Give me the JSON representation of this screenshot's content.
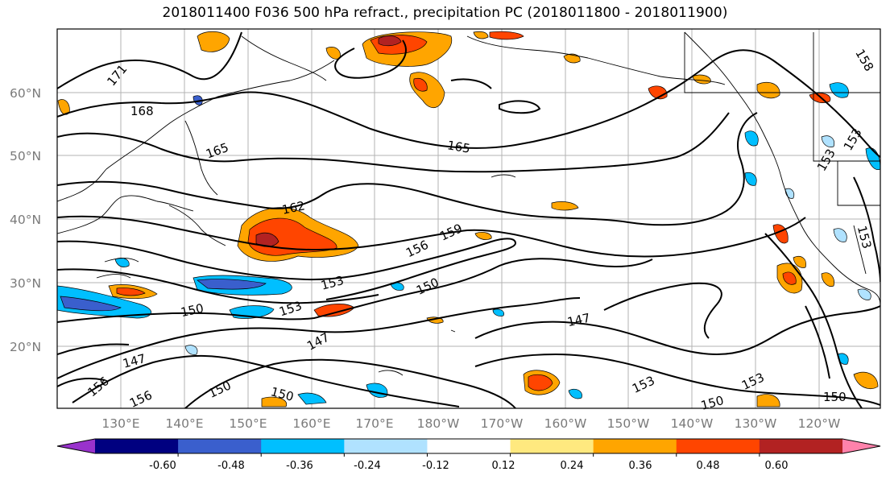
{
  "title": "2018011400 F036 500 hPa refract., precipitation PC (2018011800 - 2018011900)",
  "latitude_labels": [
    "60°N",
    "50°N",
    "40°N",
    "30°N",
    "20°N"
  ],
  "longitude_labels": [
    "130°E",
    "140°E",
    "150°E",
    "160°E",
    "170°E",
    "180°W",
    "170°W",
    "160°W",
    "150°W",
    "140°W",
    "130°W",
    "120°W"
  ],
  "contour_labels": [
    "171",
    "168",
    "165",
    "165",
    "162",
    "159",
    "156",
    "153",
    "153",
    "150",
    "150",
    "147",
    "147",
    "150",
    "156",
    "156",
    "150",
    "153",
    "153",
    "150",
    "150",
    "153",
    "153",
    "153",
    "158"
  ],
  "colorbar": {
    "tick_labels": [
      "-0.60",
      "-0.48",
      "-0.36",
      "-0.24",
      "-0.12",
      "0.12",
      "0.24",
      "0.36",
      "0.48",
      "0.60"
    ],
    "colors": [
      "#9932cc",
      "#000080",
      "#3a5fcd",
      "#00bfff",
      "#b0e2ff",
      "#ffffff",
      "#ffe97f",
      "#ffa500",
      "#ff4500",
      "#b22222",
      "#ff82ab"
    ]
  }
}
